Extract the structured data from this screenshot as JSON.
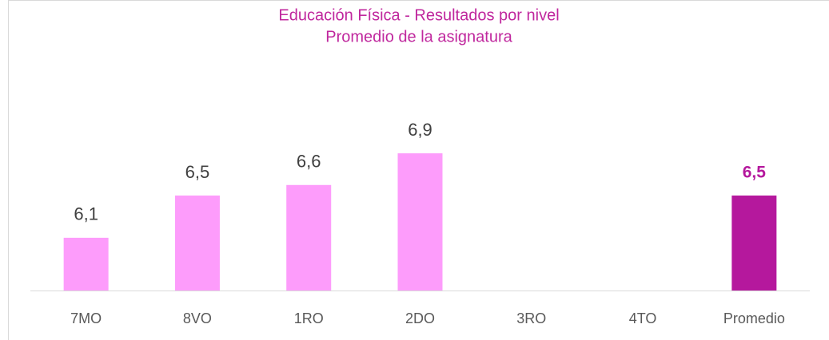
{
  "chart_data": {
    "type": "bar",
    "title": "Educación Física - Resultados por nivel",
    "subtitle": "Promedio de la asignatura",
    "categories": [
      "7MO",
      "8VO",
      "1RO",
      "2DO",
      "3RO",
      "4TO",
      "Promedio"
    ],
    "values": [
      6.1,
      6.5,
      6.6,
      6.9,
      null,
      null,
      6.5
    ],
    "value_labels": [
      "6,1",
      "6,5",
      "6,6",
      "6,9",
      null,
      null,
      "6,5"
    ],
    "colors": [
      "#fd9cfb",
      "#fd9cfb",
      "#fd9cfb",
      "#fd9cfb",
      "#fd9cfb",
      "#fd9cfb",
      "#b5189d"
    ],
    "ylim": [
      5.6,
      7.4
    ]
  }
}
